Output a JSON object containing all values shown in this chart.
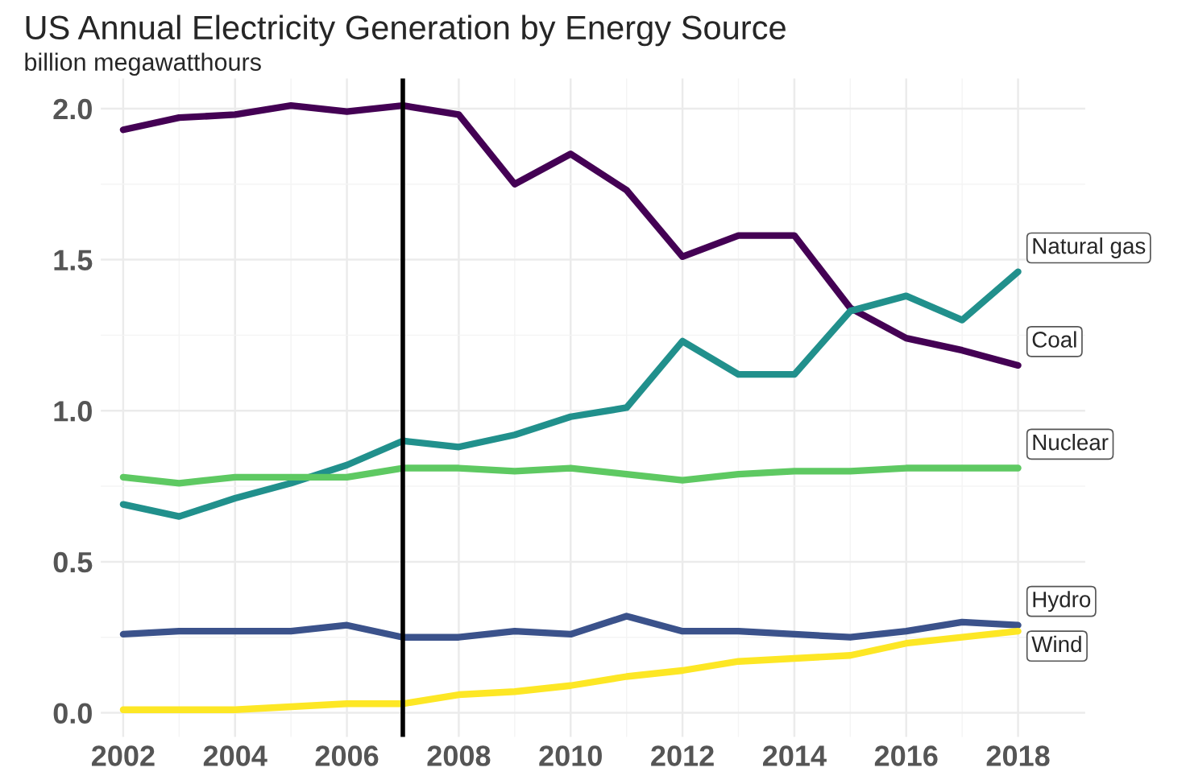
{
  "chart_data": {
    "type": "line",
    "title": "US Annual Electricity Generation by Energy Source",
    "subtitle": "billion megawatthours",
    "x": [
      2002,
      2003,
      2004,
      2005,
      2006,
      2007,
      2008,
      2009,
      2010,
      2011,
      2012,
      2013,
      2014,
      2015,
      2016,
      2017,
      2018
    ],
    "series": [
      {
        "name": "Coal",
        "color": "#440154",
        "values": [
          1.93,
          1.97,
          1.98,
          2.01,
          1.99,
          2.01,
          1.98,
          1.75,
          1.85,
          1.73,
          1.51,
          1.58,
          1.58,
          1.34,
          1.24,
          1.2,
          1.15
        ]
      },
      {
        "name": "Natural gas",
        "color": "#21908c",
        "values": [
          0.69,
          0.65,
          0.71,
          0.76,
          0.82,
          0.9,
          0.88,
          0.92,
          0.98,
          1.01,
          1.23,
          1.12,
          1.12,
          1.33,
          1.38,
          1.3,
          1.46
        ]
      },
      {
        "name": "Nuclear",
        "color": "#5ec962",
        "values": [
          0.78,
          0.76,
          0.78,
          0.78,
          0.78,
          0.81,
          0.81,
          0.8,
          0.81,
          0.79,
          0.77,
          0.79,
          0.8,
          0.8,
          0.81,
          0.81,
          0.81
        ]
      },
      {
        "name": "Hydro",
        "color": "#3b528b",
        "values": [
          0.26,
          0.27,
          0.27,
          0.27,
          0.29,
          0.25,
          0.25,
          0.27,
          0.26,
          0.32,
          0.27,
          0.27,
          0.26,
          0.25,
          0.27,
          0.3,
          0.29
        ]
      },
      {
        "name": "Wind",
        "color": "#fde725",
        "values": [
          0.01,
          0.01,
          0.01,
          0.02,
          0.03,
          0.03,
          0.06,
          0.07,
          0.09,
          0.12,
          0.14,
          0.17,
          0.18,
          0.19,
          0.23,
          0.25,
          0.27
        ]
      }
    ],
    "xlim": [
      2001.6,
      2019.2
    ],
    "ylim": [
      -0.08,
      2.1
    ],
    "xticks": [
      2002,
      2004,
      2006,
      2008,
      2010,
      2012,
      2014,
      2016,
      2018
    ],
    "yticks": [
      {
        "value": 0,
        "label": "0.0"
      },
      {
        "value": 0.5,
        "label": "0.5"
      },
      {
        "value": 1,
        "label": "1.0"
      },
      {
        "value": 1.5,
        "label": "1.5"
      },
      {
        "value": 2,
        "label": "2.0"
      }
    ],
    "ref_lines": [
      {
        "axis": "x",
        "value": 2007,
        "color": "#000000"
      }
    ],
    "grid": true,
    "legend": false,
    "marker": "none",
    "line_style": "solid"
  }
}
